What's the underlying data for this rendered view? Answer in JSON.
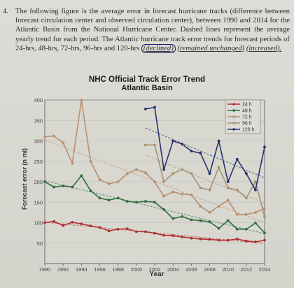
{
  "question": {
    "number": "4.",
    "text": "The following figure is the average error in forecast hurricane tracks (difference between forecast circulation center and observed circulation center), between 1990 and 2014 for the Atlantic Basin from the National Hurricane Center. Dashed lines represent the average yearly trend for each period. The Atlantic hurricane track error trends for forecast periods of 24-hrs, 48-hrs, 72-hrs, 96-hrs and 120-hrs",
    "choices": [
      "(declined)",
      "(remained unchanged)",
      "(increased)."
    ]
  },
  "chart_data": {
    "type": "line",
    "title": "NHC Official Track Error Trend",
    "subtitle": "Atlantic Basin",
    "xlabel": "Year",
    "ylabel": "Forecast error (n mi)",
    "xlim": [
      1990,
      2014
    ],
    "ylim": [
      0,
      400
    ],
    "xticks": [
      1990,
      1992,
      1994,
      1996,
      1998,
      2000,
      2002,
      2004,
      2006,
      2008,
      2010,
      2012,
      2014
    ],
    "yticks": [
      50,
      100,
      150,
      200,
      250,
      300,
      350,
      400
    ],
    "grid": true,
    "legend_position": "top-right",
    "series": [
      {
        "name": "24 h",
        "color": "#b03030",
        "x": [
          1990,
          1991,
          1992,
          1993,
          1994,
          1995,
          1996,
          1997,
          1998,
          1999,
          2000,
          2001,
          2002,
          2003,
          2004,
          2005,
          2006,
          2007,
          2008,
          2009,
          2010,
          2011,
          2012,
          2013,
          2014
        ],
        "values": [
          100,
          103,
          93,
          101,
          97,
          92,
          88,
          80,
          84,
          85,
          78,
          78,
          74,
          69,
          68,
          65,
          62,
          60,
          59,
          57,
          57,
          60,
          55,
          53,
          57
        ]
      },
      {
        "name": "48 h",
        "color": "#2e6e3a",
        "x": [
          1990,
          1991,
          1992,
          1993,
          1994,
          1995,
          1996,
          1997,
          1998,
          1999,
          2000,
          2001,
          2002,
          2003,
          2004,
          2005,
          2006,
          2007,
          2008,
          2009,
          2010,
          2011,
          2012,
          2013,
          2014
        ],
        "values": [
          200,
          187,
          190,
          187,
          215,
          178,
          160,
          155,
          160,
          152,
          150,
          152,
          150,
          132,
          110,
          115,
          107,
          105,
          102,
          86,
          105,
          84,
          84,
          99,
          75
        ]
      },
      {
        "name": "72 h",
        "color": "#b89070",
        "x": [
          1990,
          1991,
          1992,
          1993,
          1994,
          1995,
          1996,
          1997,
          1998,
          1999,
          2000,
          2001,
          2002,
          2003,
          2004,
          2005,
          2006,
          2007,
          2008,
          2009,
          2010,
          2011,
          2012,
          2013,
          2014
        ],
        "values": [
          310,
          312,
          295,
          245,
          400,
          250,
          205,
          195,
          200,
          220,
          230,
          222,
          200,
          165,
          175,
          170,
          168,
          140,
          125,
          140,
          155,
          120,
          120,
          125,
          135
        ]
      },
      {
        "name": "96 h",
        "color": "#a89070",
        "x": [
          2001,
          2002,
          2003,
          2004,
          2005,
          2006,
          2007,
          2008,
          2009,
          2010,
          2011,
          2012,
          2013,
          2014
        ],
        "values": [
          290,
          290,
          200,
          220,
          230,
          220,
          185,
          180,
          235,
          185,
          180,
          160,
          200,
          115
        ]
      },
      {
        "name": "120 h",
        "color": "#23336b",
        "x": [
          2001,
          2002,
          2003,
          2004,
          2005,
          2006,
          2007,
          2008,
          2009,
          2010,
          2011,
          2012,
          2013,
          2014
        ],
        "values": [
          378,
          382,
          230,
          300,
          292,
          275,
          270,
          220,
          300,
          200,
          255,
          220,
          180,
          285
        ]
      }
    ]
  },
  "colors": {
    "trend": "#8a8a8a",
    "axis": "#444444",
    "grid": "#bdbcb5"
  }
}
